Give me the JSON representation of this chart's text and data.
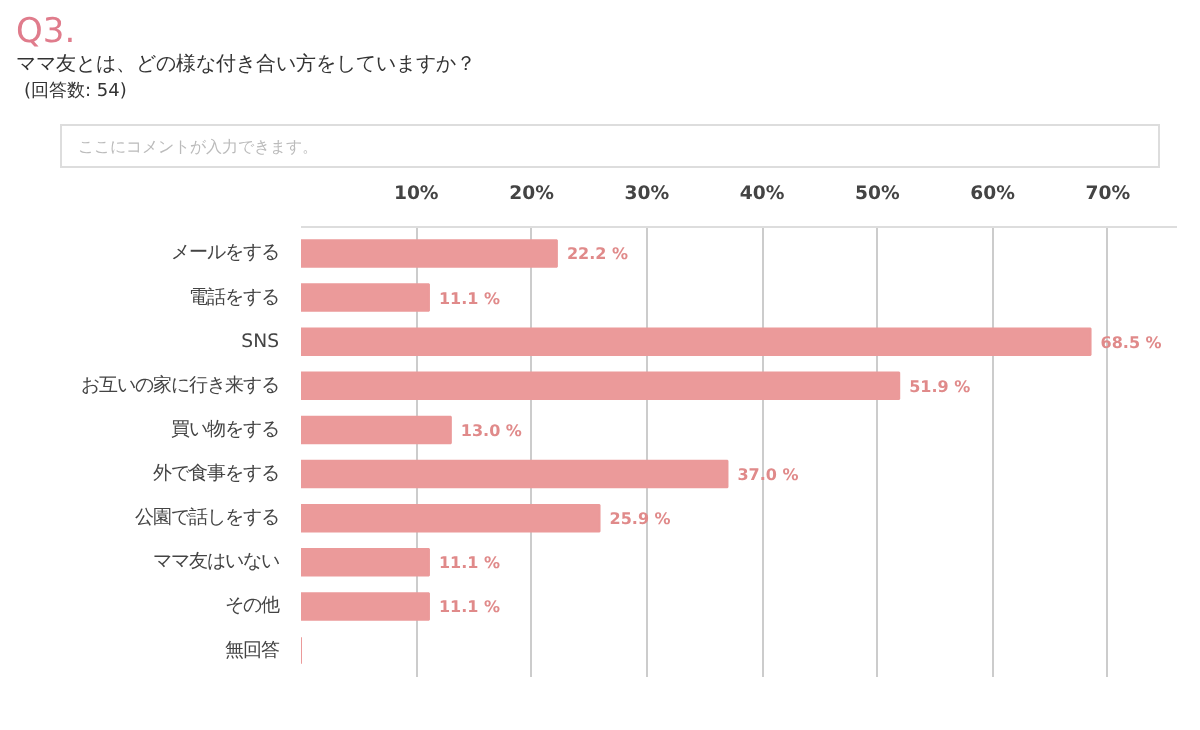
{
  "chart_data": {
    "type": "bar",
    "orientation": "horizontal",
    "title": "Q3.",
    "subtitle": "ママ友とは、どの様な付き合い方をしていますか？",
    "annotations": [
      "(回答数: 54)",
      "ここにコメントが入力できます。"
    ],
    "categories": [
      "メールをする",
      "電話をする",
      "SNS",
      "お互いの家に行き来する",
      "買い物をする",
      "外で食事をする",
      "公園で話しをする",
      "ママ友はいない",
      "その他",
      "無回答"
    ],
    "values": [
      22.2,
      11.1,
      68.5,
      51.9,
      13.0,
      37.0,
      25.9,
      11.1,
      11.1,
      0
    ],
    "value_labels": [
      "22.2 %",
      "11.1 %",
      "68.5 %",
      "51.9 %",
      "13.0 %",
      "37.0 %",
      "25.9 %",
      "11.1 %",
      "11.1 %",
      null
    ],
    "color": "#eb9a9a",
    "xlim": [
      0,
      76
    ],
    "xticks": [
      {
        "value": 0,
        "label": null
      },
      {
        "value": 10,
        "label": "10%"
      },
      {
        "value": 20,
        "label": "20%"
      },
      {
        "value": 30,
        "label": "30%"
      },
      {
        "value": 40,
        "label": "40%"
      },
      {
        "value": 50,
        "label": "50%"
      },
      {
        "value": 60,
        "label": "60%"
      },
      {
        "value": 70,
        "label": "70%"
      }
    ],
    "grid": "x"
  }
}
